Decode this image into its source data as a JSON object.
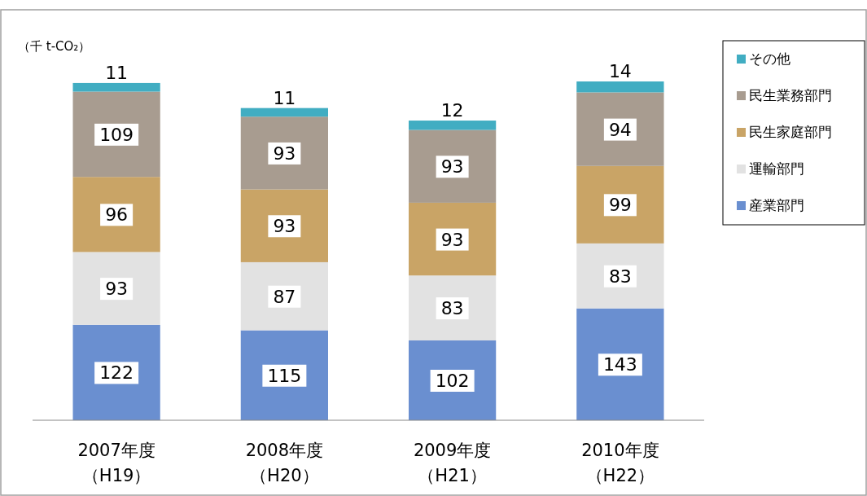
{
  "chart_data": {
    "type": "bar",
    "stacked": true,
    "data_labels": true,
    "legend": "right",
    "ylabel": "（千 t-CO₂）",
    "categories": [
      "2007年度（H19）",
      "2008年度（H20）",
      "2009年度（H21）",
      "2010年度（H22）"
    ],
    "series": [
      {
        "name": "産業部門",
        "color": "#6a8fd0",
        "values": [
          122,
          115,
          102,
          143
        ]
      },
      {
        "name": "運輸部門",
        "color": "#e2e2e2",
        "values": [
          93,
          87,
          83,
          83
        ]
      },
      {
        "name": "民生家庭部門",
        "color": "#c9a466",
        "values": [
          96,
          93,
          93,
          99
        ]
      },
      {
        "name": "民生業務部門",
        "color": "#a89c90",
        "values": [
          109,
          93,
          93,
          94
        ]
      },
      {
        "name": "その他",
        "color": "#41adc2",
        "values": [
          11,
          11,
          12,
          14
        ]
      }
    ]
  }
}
